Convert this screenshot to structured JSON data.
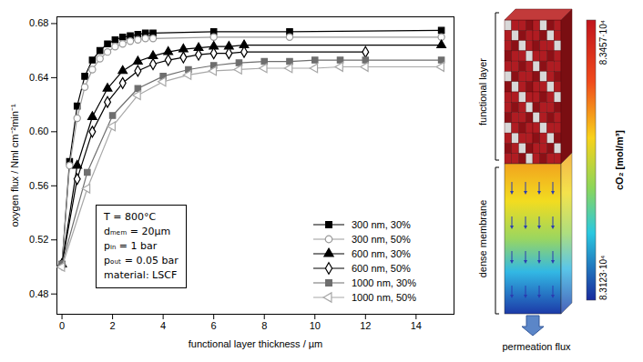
{
  "chart_data": {
    "type": "line",
    "x_label": "functional layer thickness / µm",
    "y_label": "oxygen flux / Nml cm⁻²min⁻¹",
    "xlim": [
      -0.2,
      15.5
    ],
    "xticks": [
      0,
      2,
      4,
      6,
      8,
      10,
      12,
      14
    ],
    "ylim": [
      0.465,
      0.685
    ],
    "yticks": [
      0.48,
      0.52,
      0.56,
      {
        "value": 0.6,
        "label": "0.60"
      },
      0.64,
      0.68
    ],
    "grid": false,
    "legend": "lower right",
    "annotations": [
      "T = 800°C",
      "dₘₑₘ = 20µm",
      "pᵢₙ = 1 bar",
      "pₒᵤₜ = 0.05 bar",
      "material: LSCF"
    ],
    "series": [
      {
        "name": "300 nm, 30%",
        "color": "#000000",
        "marker": "filled_square",
        "x": [
          0,
          0.3,
          0.6,
          0.9,
          1.2,
          1.5,
          1.8,
          2.1,
          2.4,
          2.7,
          3.0,
          3.3,
          3.6,
          6,
          9,
          15
        ],
        "values": [
          0.502,
          0.578,
          0.619,
          0.641,
          0.653,
          0.66,
          0.665,
          0.668,
          0.67,
          0.671,
          0.672,
          0.673,
          0.673,
          0.674,
          0.674,
          0.675
        ]
      },
      {
        "name": "300 nm, 50%",
        "color": "#9a9a9a",
        "marker": "open_circle",
        "x": [
          0,
          0.3,
          0.6,
          0.9,
          1.2,
          1.5,
          1.8,
          2.1,
          2.4,
          2.7,
          3.0,
          3.3,
          3.6,
          6,
          9,
          15
        ],
        "values": [
          0.502,
          0.575,
          0.61,
          0.633,
          0.646,
          0.654,
          0.659,
          0.663,
          0.665,
          0.667,
          0.668,
          0.669,
          0.669,
          0.67,
          0.67,
          0.67
        ]
      },
      {
        "name": "600 nm, 30%",
        "color": "#000000",
        "marker": "filled_triangle",
        "x": [
          0,
          0.6,
          1.2,
          1.8,
          2.4,
          3.0,
          3.6,
          4.2,
          4.8,
          5.4,
          6.0,
          6.6,
          7.2,
          15
        ],
        "values": [
          0.502,
          0.575,
          0.611,
          0.632,
          0.645,
          0.652,
          0.656,
          0.659,
          0.661,
          0.662,
          0.663,
          0.663,
          0.664,
          0.664
        ]
      },
      {
        "name": "600 nm, 50%",
        "color": "#000000",
        "marker": "open_diamond",
        "x": [
          0,
          0.6,
          1.2,
          1.8,
          2.4,
          3.0,
          3.6,
          4.2,
          4.8,
          5.4,
          6.0,
          6.6,
          7.2,
          12
        ],
        "values": [
          0.502,
          0.565,
          0.6,
          0.622,
          0.636,
          0.645,
          0.65,
          0.653,
          0.655,
          0.657,
          0.658,
          0.658,
          0.659,
          0.659
        ]
      },
      {
        "name": "1000 nm, 30%",
        "color": "#6e6e6e",
        "marker": "filled_square",
        "x": [
          0,
          1,
          2,
          3,
          4,
          5,
          6,
          7,
          8,
          9,
          10,
          11,
          12,
          15
        ],
        "values": [
          0.502,
          0.57,
          0.612,
          0.632,
          0.641,
          0.646,
          0.649,
          0.651,
          0.652,
          0.652,
          0.653,
          0.653,
          0.653,
          0.653
        ]
      },
      {
        "name": "1000 nm, 50%",
        "color": "#a8a8a8",
        "marker": "open_triangle_left",
        "x": [
          0,
          1,
          2,
          3,
          4,
          5,
          6,
          7,
          8,
          9,
          10,
          11,
          12,
          15
        ],
        "values": [
          0.5,
          0.558,
          0.604,
          0.627,
          0.637,
          0.642,
          0.645,
          0.646,
          0.647,
          0.647,
          0.647,
          0.648,
          0.648,
          0.648
        ]
      }
    ]
  },
  "diagram": {
    "labels": {
      "top": "functional layer",
      "bottom": "dense membrane",
      "flow": "permeation flux"
    },
    "colorbar": {
      "title": "cO₂ [mol/m³]",
      "range": [
        83123,
        83457
      ],
      "ticks": [
        {
          "value": 83457,
          "label": "8.3457·10⁴"
        },
        {
          "value": 83123,
          "label": "8.3123·10⁴"
        }
      ]
    }
  }
}
